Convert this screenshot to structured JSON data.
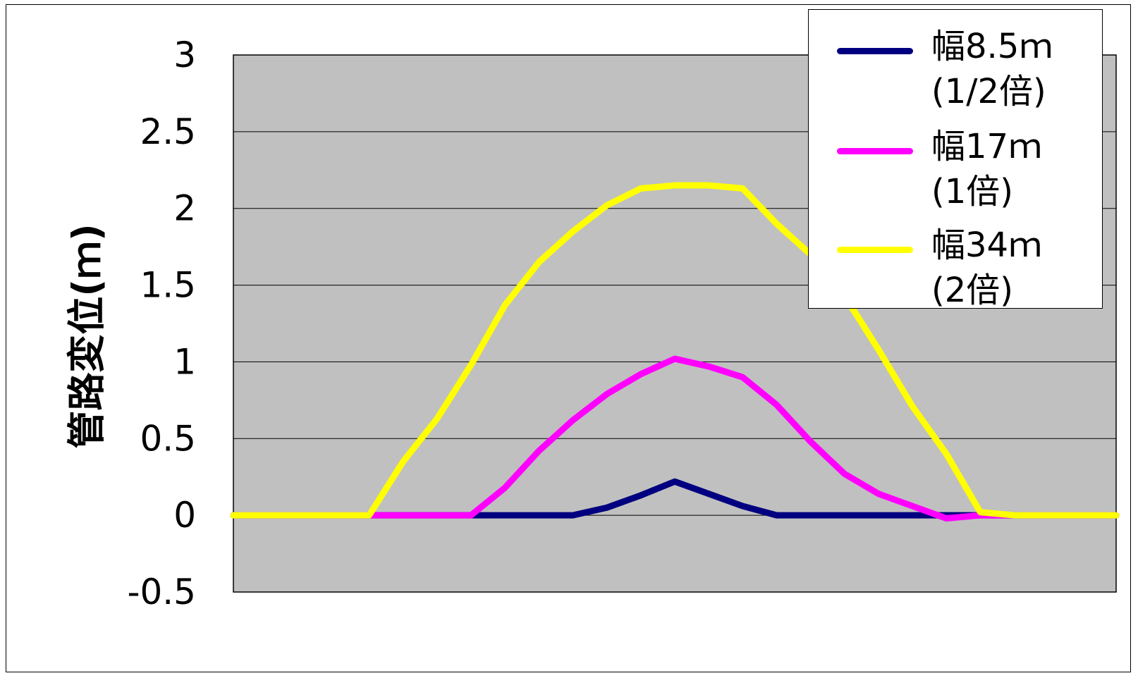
{
  "chart_data": {
    "type": "line",
    "title": "",
    "xlabel": "",
    "ylabel": "管路変位(ｍ)",
    "ylim": [
      -0.5,
      3
    ],
    "yticks": [
      "3",
      "2.5",
      "2",
      "1.5",
      "1",
      "0.5",
      "0",
      "-0.5"
    ],
    "grid": true,
    "legend_position": "top-right",
    "x": [
      0,
      1,
      2,
      3,
      4,
      5,
      6,
      7,
      8,
      9,
      10,
      11,
      12,
      13,
      14,
      15,
      16,
      17,
      18,
      19,
      20,
      21,
      22,
      23,
      24,
      25,
      26
    ],
    "series": [
      {
        "name": "幅8.5ｍ\n(1/2倍)",
        "color": "#000080",
        "values": [
          0,
          0,
          0,
          0,
          0,
          0,
          0,
          0,
          0,
          0,
          0,
          0.05,
          0.13,
          0.22,
          0.14,
          0.06,
          0,
          0,
          0,
          0,
          0,
          0,
          0,
          0,
          0,
          0,
          0
        ]
      },
      {
        "name": "幅17ｍ\n(1倍)",
        "color": "#ff00ff",
        "values": [
          0,
          0,
          0,
          0,
          0,
          0,
          0,
          0,
          0.18,
          0.42,
          0.62,
          0.79,
          0.92,
          1.02,
          0.97,
          0.9,
          0.72,
          0.48,
          0.27,
          0.14,
          0.06,
          -0.02,
          0,
          0,
          0,
          0,
          0
        ]
      },
      {
        "name": "幅34ｍ\n(2倍)",
        "color": "#ffff00",
        "values": [
          0,
          0,
          0,
          0,
          0,
          0.35,
          0.63,
          0.98,
          1.37,
          1.65,
          1.85,
          2.02,
          2.13,
          2.15,
          2.15,
          2.13,
          1.9,
          1.7,
          1.43,
          1.08,
          0.71,
          0.4,
          0.02,
          0,
          0,
          0,
          0
        ]
      }
    ]
  }
}
